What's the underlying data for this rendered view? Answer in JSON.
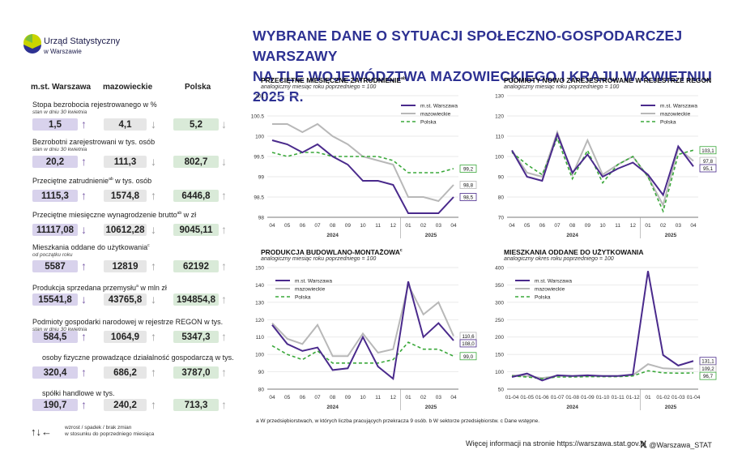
{
  "logo": {
    "line1": "Urząd Statystyczny",
    "line2": "w Warszawie"
  },
  "title": {
    "line1": "WYBRANE DANE O SYTUACJI SPOŁECZNO-GOSPODARCZEJ WARSZAWY",
    "line2": "NA TLE WOJEWÓDZTWA MAZOWIECKIEGO I KRAJU W KWIETNIU 2025 R."
  },
  "table": {
    "headers": [
      "m.st. Warszawa",
      "mazowieckie",
      "Polska"
    ],
    "rows": [
      {
        "label": "Stopa bezrobocia rejestrowanego w %",
        "note": "stan w dniu 30 kwietnia",
        "values": [
          "1,5",
          "4,1",
          "5,2"
        ],
        "trends": [
          "up",
          "down",
          "down"
        ]
      },
      {
        "label": "Bezrobotni zarejestrowani w tys. osób",
        "note": "stan w dniu 30 kwietnia",
        "values": [
          "20,2",
          "111,3",
          "802,7"
        ],
        "trends": [
          "up",
          "down",
          "down"
        ]
      },
      {
        "label": "Przeciętne zatrudnienie",
        "sup": "ab",
        "label_tail": " w tys. osób",
        "note": "",
        "values": [
          "1115,3",
          "1574,8",
          "6446,8"
        ],
        "trends": [
          "up",
          "up",
          "up"
        ]
      },
      {
        "label": "Przeciętne miesięczne wynagrodzenie brutto",
        "sup": "ab",
        "label_tail": " w zł",
        "note": "",
        "values": [
          "11117,08",
          "10612,28",
          "9045,11"
        ],
        "trends": [
          "down",
          "down",
          "up"
        ]
      },
      {
        "label": "Mieszkania oddane do użytkowania",
        "sup": "c",
        "label_tail": "",
        "note": "od początku roku",
        "values": [
          "5587",
          "12819",
          "62192"
        ],
        "trends": [
          "up",
          "up",
          "up"
        ]
      },
      {
        "label": "Produkcja sprzedana przemysłu",
        "sup": "a",
        "label_tail": " w mln zł",
        "note": "",
        "values": [
          "15541,8",
          "43765,8",
          "194854,8"
        ],
        "trends": [
          "down",
          "down",
          "up"
        ]
      },
      {
        "label": "Podmioty gospodarki narodowej w rejestrze REGON w tys.",
        "note": "stan w dniu 30 kwietnia",
        "values": [
          "584,5",
          "1064,9",
          "5347,3"
        ],
        "trends": [
          "up",
          "up",
          "up"
        ]
      },
      {
        "label": "osoby fizyczne prowadzące działalność gospodarczą w tys.",
        "note": "",
        "values": [
          "320,4",
          "686,2",
          "3787,0"
        ],
        "trends": [
          "up",
          "up",
          "up"
        ]
      },
      {
        "label": "spółki handlowe w tys.",
        "note": "",
        "values": [
          "190,7",
          "240,2",
          "713,3"
        ],
        "trends": [
          "up",
          "up",
          "up"
        ]
      }
    ]
  },
  "legend_note": {
    "line1": "wzrost / spadek / brak zmian",
    "line2": "w stosunku do poprzedniego miesiąca"
  },
  "colors": {
    "warszawa": "#4a2a8c",
    "mazowieckie": "#b8b8b8",
    "polska": "#3aa83a",
    "title": "#2d3192"
  },
  "chart_data": [
    {
      "type": "line",
      "title": "PRZECIĘTNE MIESIĘCZNE ZATRUDNIENIE",
      "title_sup": "ab",
      "subtitle": "analogiczny miesiąc roku poprzedniego = 100",
      "categories": [
        "04",
        "05",
        "06",
        "07",
        "08",
        "09",
        "10",
        "11",
        "12",
        "01",
        "02",
        "03",
        "04"
      ],
      "year_labels": [
        {
          "label": "2024",
          "at": 4
        },
        {
          "label": "2025",
          "at": 10.5
        }
      ],
      "ylim": [
        98.0,
        101.0
      ],
      "yticks": [
        98.0,
        98.5,
        99.0,
        99.5,
        100.0,
        100.5,
        101.0
      ],
      "series": [
        {
          "name": "m.st. Warszawa",
          "values": [
            99.9,
            99.8,
            99.6,
            99.8,
            99.5,
            99.3,
            98.9,
            98.9,
            98.8,
            98.1,
            98.1,
            98.1,
            98.5
          ],
          "end_label": "98,5"
        },
        {
          "name": "mazowieckie",
          "values": [
            100.3,
            100.3,
            100.1,
            100.3,
            100.0,
            99.8,
            99.5,
            99.4,
            99.3,
            98.5,
            98.5,
            98.4,
            98.8
          ],
          "end_label": "98,8"
        },
        {
          "name": "Polska",
          "values": [
            99.6,
            99.5,
            99.6,
            99.6,
            99.5,
            99.5,
            99.5,
            99.5,
            99.4,
            99.1,
            99.1,
            99.1,
            99.2
          ],
          "end_label": "99,2"
        }
      ]
    },
    {
      "type": "line",
      "title": "PODMIOTY NOWO ZAREJESTROWANE W REJESTRZE REGON",
      "title_sup": "",
      "subtitle": "analogiczny miesiąc roku poprzedniego = 100",
      "categories": [
        "04",
        "05",
        "06",
        "07",
        "08",
        "09",
        "10",
        "11",
        "12",
        "01",
        "02",
        "03",
        "04"
      ],
      "year_labels": [
        {
          "label": "2024",
          "at": 4
        },
        {
          "label": "2025",
          "at": 10.5
        }
      ],
      "ylim": [
        70.0,
        130.0
      ],
      "yticks": [
        70.0,
        80.0,
        90.0,
        100.0,
        110.0,
        120.0,
        130.0
      ],
      "series": [
        {
          "name": "m.st. Warszawa",
          "values": [
            103,
            90,
            88,
            111,
            92,
            101,
            90,
            94,
            97,
            91,
            81,
            105,
            95.1
          ],
          "end_label": "95,1"
        },
        {
          "name": "mazowieckie",
          "values": [
            103,
            92,
            90,
            112,
            91,
            108,
            91,
            96,
            100,
            90,
            76,
            104,
            97.8
          ],
          "end_label": "97,8"
        },
        {
          "name": "Polska",
          "values": [
            102,
            96,
            91,
            109,
            89,
            103,
            87,
            96,
            100,
            90,
            73,
            101,
            103.1
          ],
          "end_label": "103,1"
        }
      ]
    },
    {
      "type": "line",
      "title": "PRODUKCJA BUDOWLANO-MONTAŻOWA",
      "title_sup": "c",
      "subtitle": "analogiczny miesiąc roku poprzedniego = 100",
      "categories": [
        "04",
        "05",
        "06",
        "07",
        "08",
        "09",
        "10",
        "11",
        "12",
        "01",
        "02",
        "03",
        "04"
      ],
      "year_labels": [
        {
          "label": "2024",
          "at": 4
        },
        {
          "label": "2025",
          "at": 10.5
        }
      ],
      "ylim": [
        80.0,
        150.0
      ],
      "yticks": [
        80.0,
        90.0,
        100.0,
        110.0,
        120.0,
        130.0,
        140.0,
        150.0
      ],
      "series": [
        {
          "name": "m.st. Warszawa",
          "values": [
            117,
            106,
            102,
            104,
            91,
            92,
            110,
            93,
            86,
            142,
            110,
            118,
            108.0
          ],
          "end_label": "108,0"
        },
        {
          "name": "mazowieckie",
          "values": [
            118,
            109,
            106,
            117,
            99,
            99,
            112,
            101,
            103,
            140,
            123,
            130,
            110.6
          ],
          "end_label": "110,6"
        },
        {
          "name": "Polska",
          "values": [
            105,
            100,
            97,
            102,
            95,
            95,
            95,
            95,
            97,
            107,
            103,
            103,
            99.0
          ],
          "end_label": "99,0"
        }
      ]
    },
    {
      "type": "line",
      "title": "MIESZKANIA ODDANE DO UŻYTKOWANIA",
      "title_sup": "",
      "subtitle": "analogiczny okres roku poprzedniego = 100",
      "categories": [
        "01-04",
        "01-05",
        "01-06",
        "01-07",
        "01-08",
        "01-09",
        "01-10",
        "01-11",
        "01-12",
        "01",
        "01-02",
        "01-03",
        "01-04"
      ],
      "year_labels": [
        {
          "label": "2024",
          "at": 4
        },
        {
          "label": "2025",
          "at": 10.5
        }
      ],
      "ylim": [
        50.0,
        400.0
      ],
      "yticks": [
        50.0,
        100.0,
        150.0,
        200.0,
        250.0,
        300.0,
        350.0,
        400.0
      ],
      "series": [
        {
          "name": "m.st. Warszawa",
          "values": [
            85,
            95,
            75,
            90,
            88,
            90,
            88,
            88,
            92,
            390,
            148,
            118,
            131.1
          ],
          "end_label": "131,1"
        },
        {
          "name": "mazowieckie",
          "values": [
            90,
            88,
            82,
            88,
            88,
            88,
            88,
            88,
            90,
            122,
            110,
            108,
            109.2
          ],
          "end_label": "109,2"
        },
        {
          "name": "Polska",
          "values": [
            88,
            85,
            80,
            85,
            85,
            86,
            86,
            86,
            88,
            103,
            97,
            96,
            96.7
          ],
          "end_label": "96,7"
        }
      ]
    }
  ],
  "footnote": "a W przedsiębiorstwach, w których liczba pracujących przekracza 9 osób.   b W sektorze przedsiębiorstw.   c Dane wstępne.",
  "footer": {
    "info": "Więcej informacji na stronie https://warszawa.stat.gov.pl",
    "social": "@Warszawa_STAT"
  }
}
